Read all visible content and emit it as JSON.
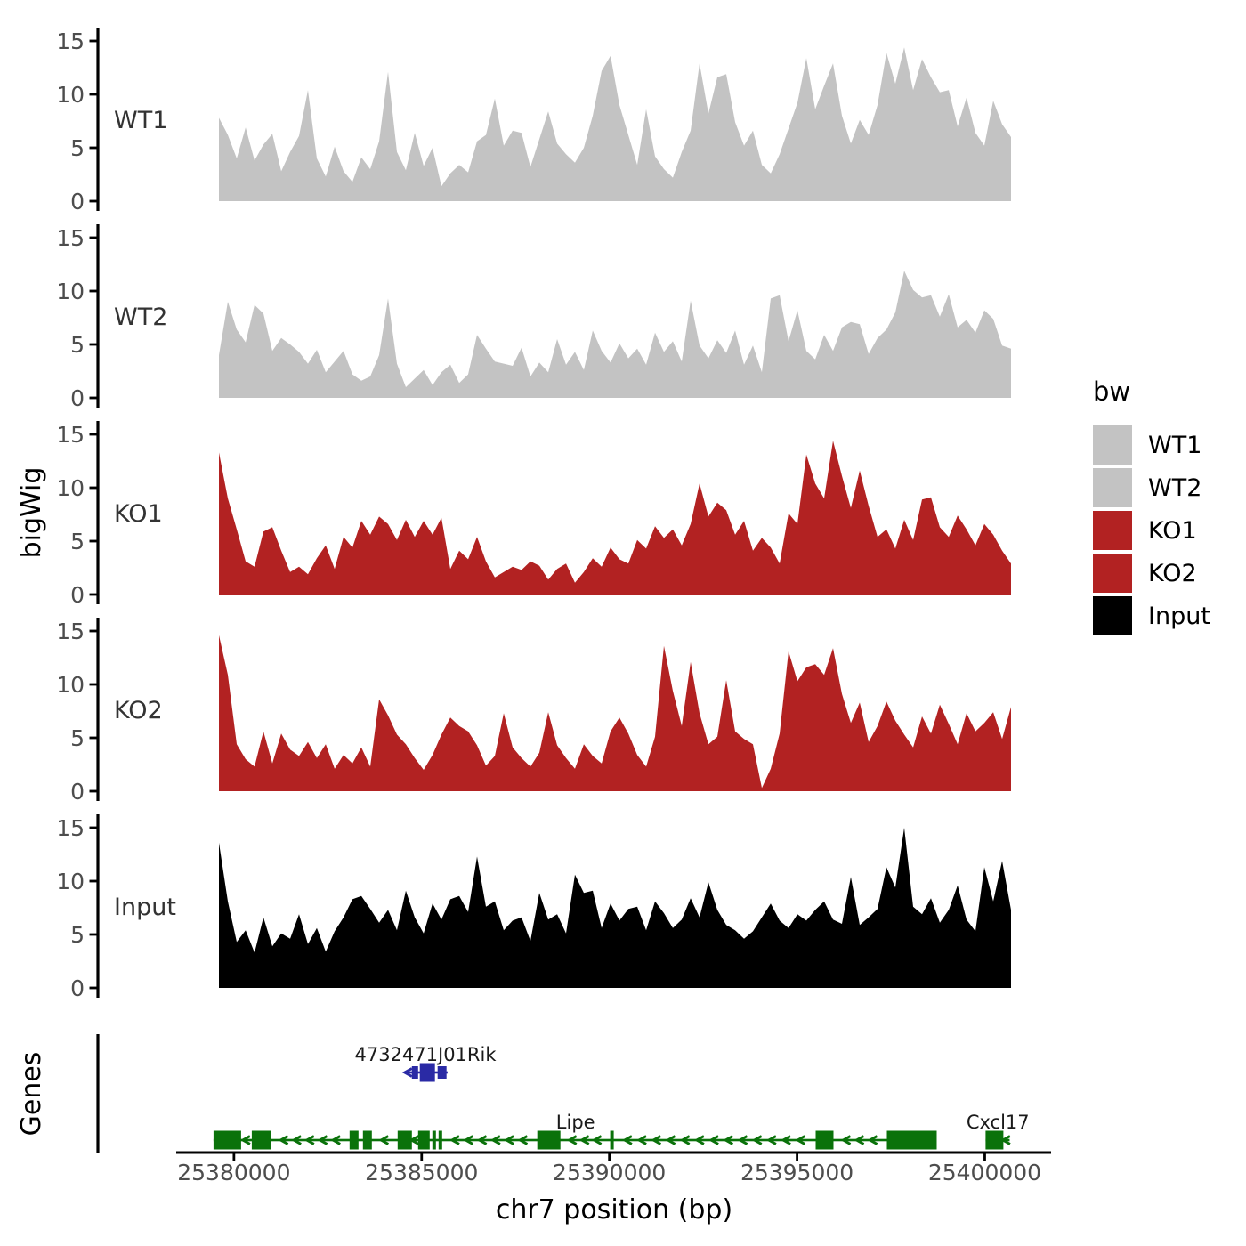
{
  "axes": {
    "y_title": "bigWig",
    "genes_title": "Genes",
    "x_title": "chr7 position (bp)"
  },
  "legend": {
    "title": "bw",
    "items": [
      {
        "label": "WT1",
        "color": "#c3c3c3"
      },
      {
        "label": "WT2",
        "color": "#c3c3c3"
      },
      {
        "label": "KO1",
        "color": "#b22222"
      },
      {
        "label": "KO2",
        "color": "#b22222"
      },
      {
        "label": "Input",
        "color": "#000000"
      }
    ]
  },
  "chart_data": {
    "type": "area",
    "title": "",
    "x_axis": {
      "label": "chr7 position (bp)",
      "range_bp": [
        25379600,
        25400700
      ],
      "ticks": [
        25380000,
        25385000,
        25390000,
        25395000,
        25400000
      ]
    },
    "y_axis": {
      "label": "bigWig",
      "range": [
        0,
        15
      ],
      "ticks": [
        0,
        5,
        10,
        15
      ]
    },
    "tracks": [
      {
        "name": "WT1",
        "color": "#c3c3c3",
        "values": [
          7.8,
          6.2,
          4.0,
          6.9,
          3.8,
          5.3,
          6.3,
          2.8,
          4.6,
          6.1,
          10.4,
          4.0,
          2.3,
          5.1,
          2.8,
          1.8,
          4.1,
          3.0,
          5.6,
          12.1,
          4.6,
          2.9,
          6.4,
          3.3,
          5.0,
          1.4,
          2.6,
          3.4,
          2.7,
          5.6,
          6.2,
          9.6,
          5.2,
          6.6,
          6.4,
          3.2,
          5.8,
          8.4,
          5.4,
          4.4,
          3.6,
          5.0,
          8.0,
          12.2,
          13.6,
          9.0,
          6.2,
          3.4,
          8.6,
          4.2,
          3.0,
          2.2,
          4.6,
          6.6,
          12.9,
          8.2,
          11.6,
          11.9,
          7.4,
          5.2,
          6.6,
          3.4,
          2.6,
          4.4,
          6.8,
          9.2,
          13.4,
          8.6,
          10.8,
          12.9,
          8.0,
          5.4,
          7.6,
          6.2,
          9.0,
          13.9,
          11.0,
          14.4,
          10.4,
          13.3,
          11.6,
          10.2,
          10.4,
          7.0,
          9.7,
          6.4,
          5.2,
          9.4,
          7.2,
          6.0
        ]
      },
      {
        "name": "WT2",
        "color": "#c3c3c3",
        "values": [
          4.0,
          9.0,
          6.4,
          5.2,
          8.7,
          7.9,
          4.4,
          5.6,
          5.0,
          4.3,
          3.2,
          4.5,
          2.4,
          3.4,
          4.4,
          2.2,
          1.6,
          2.0,
          4.0,
          9.3,
          3.2,
          1.0,
          1.8,
          2.6,
          1.2,
          2.4,
          3.1,
          1.4,
          2.2,
          5.9,
          4.6,
          3.4,
          3.2,
          3.0,
          4.7,
          2.0,
          3.3,
          2.4,
          5.5,
          3.1,
          4.3,
          2.6,
          6.3,
          4.4,
          3.3,
          5.1,
          3.7,
          4.6,
          3.1,
          6.1,
          4.3,
          5.3,
          3.4,
          9.1,
          4.9,
          3.7,
          5.4,
          4.2,
          6.3,
          3.1,
          4.9,
          2.4,
          9.3,
          9.6,
          5.3,
          8.2,
          4.4,
          3.6,
          5.9,
          4.4,
          6.6,
          7.1,
          6.9,
          4.1,
          5.6,
          6.4,
          8.0,
          11.9,
          10.1,
          9.4,
          9.6,
          7.6,
          9.7,
          6.6,
          7.3,
          6.1,
          8.2,
          7.4,
          4.9,
          4.6
        ]
      },
      {
        "name": "KO1",
        "color": "#b22222",
        "values": [
          13.3,
          9.0,
          6.1,
          3.1,
          2.6,
          5.9,
          6.3,
          4.1,
          2.1,
          2.6,
          1.9,
          3.4,
          4.6,
          2.4,
          5.4,
          4.4,
          6.9,
          5.6,
          7.3,
          6.6,
          5.1,
          7.0,
          5.4,
          6.9,
          5.6,
          7.2,
          2.4,
          4.1,
          3.3,
          5.4,
          3.1,
          1.6,
          2.1,
          2.6,
          2.3,
          3.1,
          2.7,
          1.4,
          2.4,
          2.9,
          1.1,
          2.1,
          3.4,
          2.6,
          4.4,
          3.3,
          2.9,
          5.1,
          4.3,
          6.4,
          5.3,
          6.1,
          4.6,
          6.6,
          10.4,
          7.3,
          8.6,
          7.9,
          5.6,
          6.9,
          4.1,
          5.3,
          4.4,
          2.9,
          7.6,
          6.6,
          13.1,
          10.4,
          9.0,
          14.4,
          11.1,
          8.1,
          11.6,
          8.3,
          5.4,
          6.1,
          4.3,
          7.0,
          5.1,
          8.9,
          9.1,
          6.3,
          5.4,
          7.4,
          6.1,
          4.6,
          6.6,
          5.6,
          4.1,
          2.9
        ]
      },
      {
        "name": "KO2",
        "color": "#b22222",
        "values": [
          14.6,
          10.9,
          4.4,
          3.0,
          2.3,
          5.6,
          2.6,
          5.4,
          3.9,
          3.3,
          4.6,
          3.1,
          4.4,
          2.1,
          3.4,
          2.6,
          4.1,
          2.3,
          8.6,
          7.1,
          5.3,
          4.4,
          3.1,
          2.0,
          3.4,
          5.3,
          6.9,
          6.1,
          5.6,
          4.3,
          2.4,
          3.3,
          7.3,
          4.1,
          3.1,
          2.3,
          3.6,
          7.4,
          4.3,
          3.1,
          2.1,
          4.4,
          3.3,
          2.6,
          5.6,
          6.9,
          5.4,
          3.4,
          2.3,
          5.1,
          13.6,
          9.4,
          6.1,
          12.1,
          7.3,
          4.4,
          5.1,
          10.4,
          5.6,
          4.9,
          4.4,
          0.3,
          2.1,
          5.4,
          13.1,
          10.3,
          11.6,
          11.9,
          10.9,
          13.4,
          9.1,
          6.4,
          8.3,
          4.6,
          6.1,
          8.4,
          6.6,
          5.3,
          4.1,
          7.0,
          5.4,
          8.1,
          6.3,
          4.4,
          7.3,
          5.6,
          6.4,
          7.4,
          4.9,
          7.9
        ]
      },
      {
        "name": "Input",
        "color": "#000000",
        "values": [
          13.6,
          8.1,
          4.3,
          5.4,
          3.3,
          6.6,
          3.9,
          5.1,
          4.6,
          6.9,
          4.1,
          5.6,
          3.4,
          5.3,
          6.6,
          8.3,
          8.6,
          7.4,
          6.1,
          7.3,
          5.4,
          9.1,
          6.6,
          5.1,
          7.9,
          6.4,
          8.3,
          8.6,
          7.1,
          12.3,
          7.6,
          8.1,
          5.4,
          6.3,
          6.6,
          4.4,
          8.9,
          6.4,
          6.9,
          5.1,
          10.6,
          8.9,
          9.1,
          5.6,
          7.9,
          6.3,
          7.4,
          7.6,
          5.4,
          8.1,
          7.0,
          5.6,
          6.4,
          8.4,
          6.6,
          9.9,
          7.3,
          5.9,
          5.4,
          4.6,
          5.3,
          6.6,
          7.9,
          6.3,
          5.6,
          6.9,
          6.3,
          7.3,
          8.1,
          6.4,
          6.0,
          10.4,
          5.9,
          6.6,
          7.4,
          11.3,
          9.4,
          15.0,
          7.6,
          6.9,
          8.4,
          6.1,
          7.3,
          9.6,
          6.4,
          5.3,
          11.3,
          8.1,
          11.9,
          7.3
        ]
      }
    ],
    "genes_panel": {
      "label": "Genes",
      "genes": [
        {
          "name": "4732471J01Rik",
          "color": "#2a2aa5",
          "strand": "-",
          "row": 0,
          "start": 25384550,
          "end": 25385690,
          "label_bp": 25385100,
          "exons": [
            {
              "start": 25384739,
              "end": 25384905,
              "type": "utr"
            },
            {
              "start": 25384952,
              "end": 25385355,
              "type": "cds"
            },
            {
              "start": 25385426,
              "end": 25385664,
              "type": "utr"
            }
          ]
        },
        {
          "name": "Lipe",
          "color": "#0a720a",
          "strand": "-",
          "row": 1,
          "start": 25379455,
          "end": 25398720,
          "label_bp": 25389100,
          "exons": [
            {
              "start": 25379455,
              "end": 25380190,
              "type": "cds"
            },
            {
              "start": 25380474,
              "end": 25380995,
              "type": "cds"
            },
            {
              "start": 25383081,
              "end": 25383318,
              "type": "cds"
            },
            {
              "start": 25383436,
              "end": 25383673,
              "type": "cds"
            },
            {
              "start": 25384360,
              "end": 25384739,
              "type": "cds"
            },
            {
              "start": 25384905,
              "end": 25385213,
              "type": "cds"
            },
            {
              "start": 25385284,
              "end": 25385379,
              "type": "cds"
            },
            {
              "start": 25385450,
              "end": 25385545,
              "type": "cds"
            },
            {
              "start": 25388080,
              "end": 25388696,
              "type": "cds"
            },
            {
              "start": 25390023,
              "end": 25390118,
              "type": "cds"
            },
            {
              "start": 25395497,
              "end": 25395971,
              "type": "cds"
            },
            {
              "start": 25397393,
              "end": 25398720,
              "type": "cds"
            }
          ]
        },
        {
          "name": "Cxcl17",
          "color": "#0a720a",
          "strand": "-",
          "row": 1,
          "start": 25400023,
          "end": 25400663,
          "label_bp": 25400350,
          "exons": [
            {
              "start": 25400023,
              "end": 25400497,
              "type": "cds"
            }
          ]
        }
      ]
    }
  }
}
